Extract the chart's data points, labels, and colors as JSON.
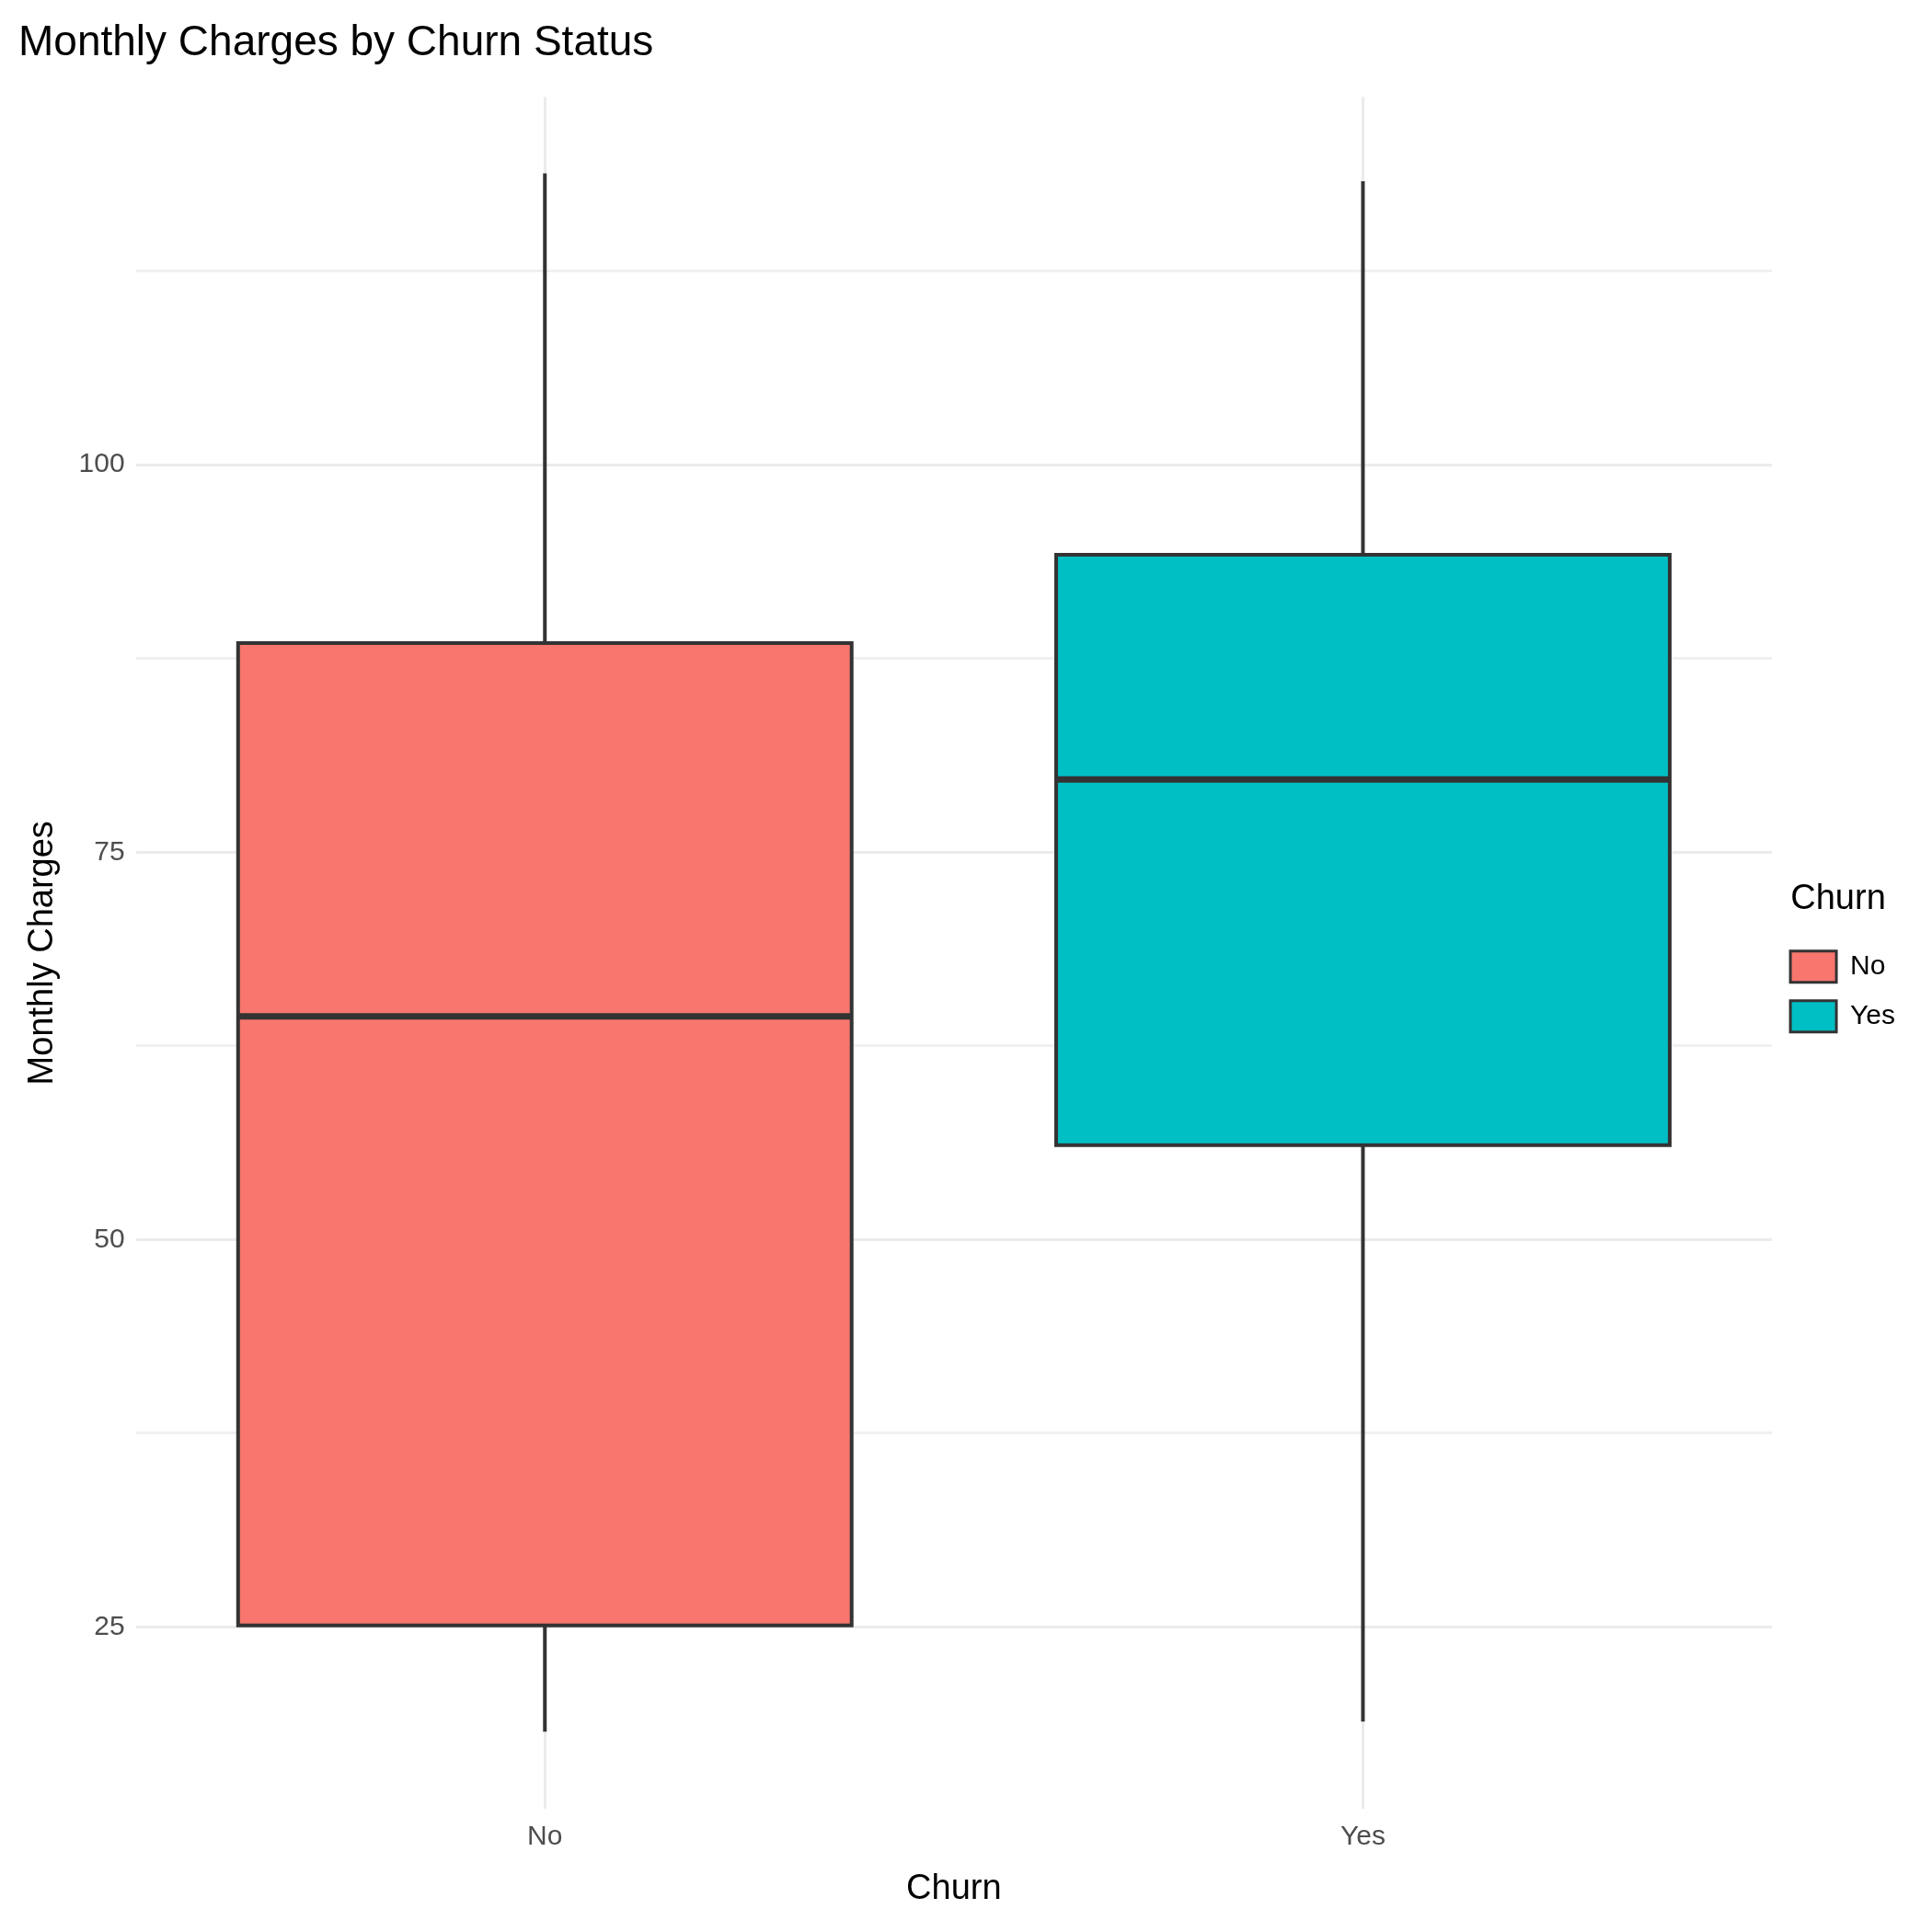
{
  "chart_data": {
    "type": "box",
    "title": "Monthly Charges by Churn Status",
    "xlabel": "Churn",
    "ylabel": "Monthly Charges",
    "legend_title": "Churn",
    "categories": [
      "No",
      "Yes"
    ],
    "series": [
      {
        "name": "No",
        "color": "#f8766d",
        "boxes": [
          {
            "low": 18.25,
            "q1": 25.1,
            "median": 64.4,
            "q3": 88.5,
            "high": 118.8
          },
          null
        ]
      },
      {
        "name": "Yes",
        "color": "#00bfc4",
        "boxes": [
          null,
          {
            "low": 18.9,
            "q1": 56.1,
            "median": 79.7,
            "q3": 94.2,
            "high": 118.3
          }
        ]
      }
    ],
    "ylim": [
      13.25,
      123.75
    ],
    "yticks": [
      25,
      {
        "value": 37.5,
        "label": null
      },
      50,
      {
        "value": 62.5,
        "label": null
      },
      75,
      {
        "value": 87.5,
        "label": null
      },
      100,
      {
        "value": 112.5,
        "label": null
      }
    ],
    "grid": true,
    "legend": "right"
  }
}
